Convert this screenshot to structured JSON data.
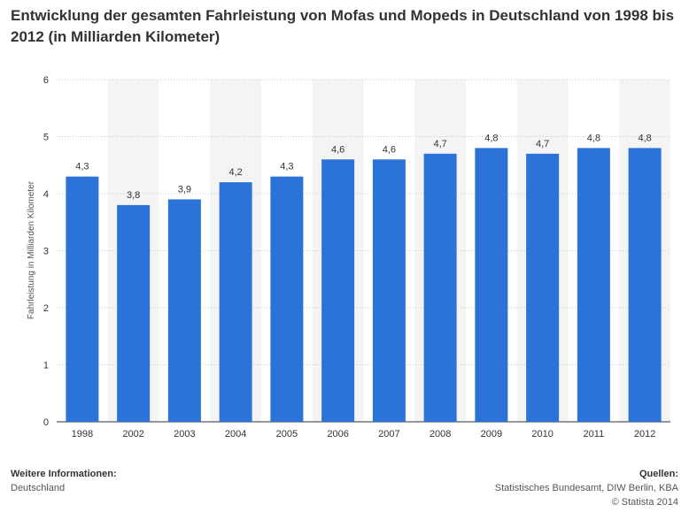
{
  "title": "Entwicklung der gesamten Fahrleistung von Mofas und Mopeds in Deutschland von 1998 bis 2012 (in Milliarden Kilometer)",
  "chart_data": {
    "type": "bar",
    "categories": [
      "1998",
      "2002",
      "2003",
      "2004",
      "2005",
      "2006",
      "2007",
      "2008",
      "2009",
      "2010",
      "2011",
      "2012"
    ],
    "values": [
      4.3,
      3.8,
      3.9,
      4.2,
      4.3,
      4.6,
      4.6,
      4.7,
      4.8,
      4.7,
      4.8,
      4.8
    ],
    "value_labels": [
      "4,3",
      "3,8",
      "3,9",
      "4,2",
      "4,3",
      "4,6",
      "4,6",
      "4,7",
      "4,8",
      "4,7",
      "4,8",
      "4,8"
    ],
    "ylabel": "Fahrleistung in Milliarden Kilometer",
    "ylim": [
      0,
      6
    ],
    "yticks": [
      "0",
      "1",
      "2",
      "3",
      "4",
      "5",
      "6"
    ],
    "grid": true,
    "alternating_column_bands": true,
    "bar_color": "#2b73d8",
    "band_color": "#f4f4f4"
  },
  "footer": {
    "info_heading": "Weitere Informationen:",
    "info_text": "Deutschland",
    "sources_heading": "Quellen:",
    "sources_text": "Statistisches Bundesamt, DIW Berlin, KBA",
    "copyright": "© Statista 2014"
  }
}
